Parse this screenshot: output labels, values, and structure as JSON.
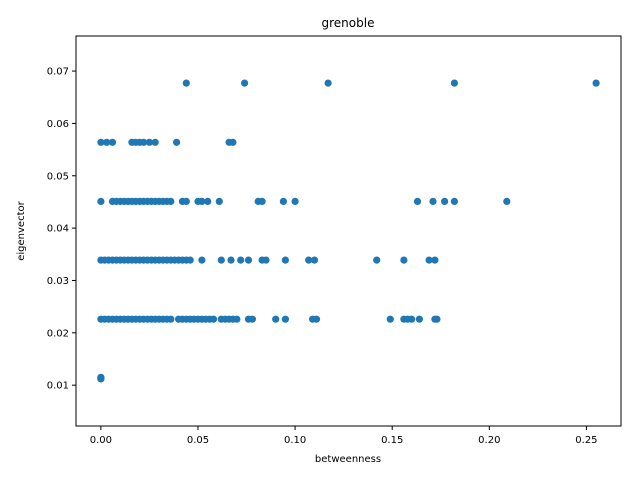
{
  "chart_data": {
    "type": "scatter",
    "title": "grenoble",
    "xlabel": "betweenness",
    "ylabel": "eigenvector",
    "xlim": [
      -0.0128,
      0.2678
    ],
    "ylim": [
      0.0022,
      0.0767
    ],
    "xticks": [
      "0.00",
      "0.05",
      "0.10",
      "0.15",
      "0.20",
      "0.25"
    ],
    "xtick_values": [
      0.0,
      0.05,
      0.1,
      0.15,
      0.2,
      0.25
    ],
    "yticks": [
      "0.01",
      "0.02",
      "0.03",
      "0.04",
      "0.05",
      "0.06",
      "0.07"
    ],
    "ytick_values": [
      0.01,
      0.02,
      0.03,
      0.04,
      0.05,
      0.06,
      0.07
    ],
    "grid": false,
    "marker_color": "#1f77b4",
    "series": [
      {
        "points": [
          [
            0.0,
            0.0114
          ],
          [
            0.0,
            0.0113
          ],
          [
            0.0,
            0.0112
          ],
          [
            0.0,
            0.0115
          ],
          [
            0.0,
            0.0226
          ],
          [
            0.002,
            0.0226
          ],
          [
            0.004,
            0.0226
          ],
          [
            0.006,
            0.0226
          ],
          [
            0.008,
            0.0226
          ],
          [
            0.01,
            0.0226
          ],
          [
            0.012,
            0.0226
          ],
          [
            0.014,
            0.0226
          ],
          [
            0.016,
            0.0226
          ],
          [
            0.018,
            0.0226
          ],
          [
            0.02,
            0.0226
          ],
          [
            0.022,
            0.0226
          ],
          [
            0.024,
            0.0226
          ],
          [
            0.026,
            0.0226
          ],
          [
            0.028,
            0.0226
          ],
          [
            0.03,
            0.0226
          ],
          [
            0.032,
            0.0226
          ],
          [
            0.034,
            0.0226
          ],
          [
            0.036,
            0.0226
          ],
          [
            0.04,
            0.0226
          ],
          [
            0.042,
            0.0226
          ],
          [
            0.044,
            0.0226
          ],
          [
            0.046,
            0.0226
          ],
          [
            0.048,
            0.0226
          ],
          [
            0.05,
            0.0226
          ],
          [
            0.052,
            0.0226
          ],
          [
            0.054,
            0.0226
          ],
          [
            0.056,
            0.0226
          ],
          [
            0.058,
            0.0226
          ],
          [
            0.062,
            0.0226
          ],
          [
            0.064,
            0.0226
          ],
          [
            0.066,
            0.0226
          ],
          [
            0.068,
            0.0226
          ],
          [
            0.07,
            0.0226
          ],
          [
            0.076,
            0.0226
          ],
          [
            0.078,
            0.0226
          ],
          [
            0.09,
            0.0226
          ],
          [
            0.095,
            0.0226
          ],
          [
            0.109,
            0.0226
          ],
          [
            0.111,
            0.0226
          ],
          [
            0.149,
            0.0226
          ],
          [
            0.156,
            0.0226
          ],
          [
            0.158,
            0.0226
          ],
          [
            0.16,
            0.0226
          ],
          [
            0.164,
            0.0226
          ],
          [
            0.172,
            0.0226
          ],
          [
            0.173,
            0.0226
          ],
          [
            0.0,
            0.0339
          ],
          [
            0.002,
            0.0339
          ],
          [
            0.004,
            0.0339
          ],
          [
            0.006,
            0.0339
          ],
          [
            0.008,
            0.0339
          ],
          [
            0.01,
            0.0339
          ],
          [
            0.012,
            0.0339
          ],
          [
            0.014,
            0.0339
          ],
          [
            0.016,
            0.0339
          ],
          [
            0.018,
            0.0339
          ],
          [
            0.02,
            0.0339
          ],
          [
            0.022,
            0.0339
          ],
          [
            0.024,
            0.0339
          ],
          [
            0.026,
            0.0339
          ],
          [
            0.028,
            0.0339
          ],
          [
            0.03,
            0.0339
          ],
          [
            0.032,
            0.0339
          ],
          [
            0.034,
            0.0339
          ],
          [
            0.036,
            0.0339
          ],
          [
            0.038,
            0.0339
          ],
          [
            0.04,
            0.0339
          ],
          [
            0.042,
            0.0339
          ],
          [
            0.044,
            0.0339
          ],
          [
            0.046,
            0.0339
          ],
          [
            0.052,
            0.0339
          ],
          [
            0.062,
            0.0339
          ],
          [
            0.067,
            0.0339
          ],
          [
            0.072,
            0.0339
          ],
          [
            0.076,
            0.0339
          ],
          [
            0.083,
            0.0339
          ],
          [
            0.085,
            0.0339
          ],
          [
            0.095,
            0.0339
          ],
          [
            0.107,
            0.0339
          ],
          [
            0.11,
            0.0339
          ],
          [
            0.142,
            0.0339
          ],
          [
            0.156,
            0.0339
          ],
          [
            0.169,
            0.0339
          ],
          [
            0.172,
            0.0339
          ],
          [
            0.0,
            0.0451
          ],
          [
            0.006,
            0.0451
          ],
          [
            0.008,
            0.0451
          ],
          [
            0.01,
            0.0451
          ],
          [
            0.012,
            0.0451
          ],
          [
            0.014,
            0.0451
          ],
          [
            0.016,
            0.0451
          ],
          [
            0.018,
            0.0451
          ],
          [
            0.02,
            0.0451
          ],
          [
            0.022,
            0.0451
          ],
          [
            0.024,
            0.0451
          ],
          [
            0.026,
            0.0451
          ],
          [
            0.028,
            0.0451
          ],
          [
            0.03,
            0.0451
          ],
          [
            0.032,
            0.0451
          ],
          [
            0.034,
            0.0451
          ],
          [
            0.036,
            0.0451
          ],
          [
            0.042,
            0.0451
          ],
          [
            0.044,
            0.0451
          ],
          [
            0.05,
            0.0451
          ],
          [
            0.052,
            0.0451
          ],
          [
            0.055,
            0.0451
          ],
          [
            0.061,
            0.0451
          ],
          [
            0.081,
            0.0451
          ],
          [
            0.083,
            0.0451
          ],
          [
            0.094,
            0.0451
          ],
          [
            0.1,
            0.0451
          ],
          [
            0.163,
            0.0451
          ],
          [
            0.171,
            0.0451
          ],
          [
            0.177,
            0.0451
          ],
          [
            0.182,
            0.0451
          ],
          [
            0.209,
            0.0451
          ],
          [
            0.0,
            0.0564
          ],
          [
            0.003,
            0.0564
          ],
          [
            0.006,
            0.0564
          ],
          [
            0.016,
            0.0564
          ],
          [
            0.018,
            0.0564
          ],
          [
            0.02,
            0.0564
          ],
          [
            0.022,
            0.0564
          ],
          [
            0.025,
            0.0564
          ],
          [
            0.028,
            0.0564
          ],
          [
            0.039,
            0.0564
          ],
          [
            0.066,
            0.0564
          ],
          [
            0.068,
            0.0564
          ],
          [
            0.044,
            0.0677
          ],
          [
            0.074,
            0.0677
          ],
          [
            0.117,
            0.0677
          ],
          [
            0.182,
            0.0677
          ],
          [
            0.255,
            0.0677
          ]
        ]
      }
    ]
  }
}
